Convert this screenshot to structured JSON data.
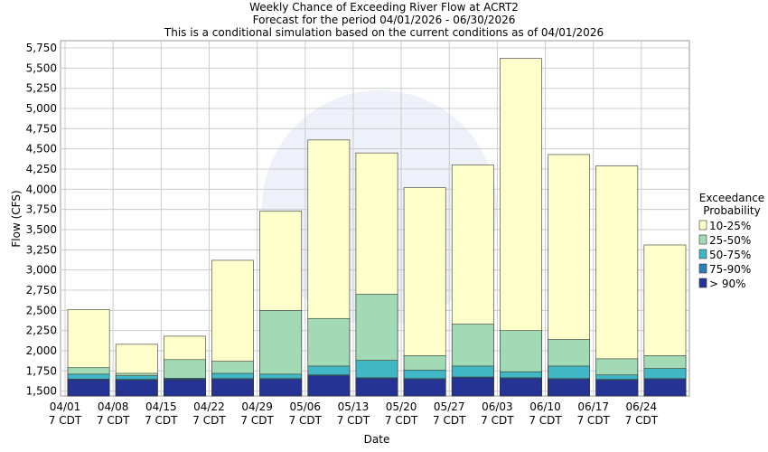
{
  "chart_data": {
    "type": "bar",
    "title": "Weekly Chance of Exceeding River Flow at ACRT2",
    "subtitle": "Forecast for the period 04/01/2026 - 06/30/2026",
    "subtitle2": "This is a conditional simulation based on the current conditions as of 04/01/2026",
    "x_label": "Date",
    "y_label": "Flow (CFS)",
    "legend_title": "Exceedance Probability",
    "categories": [
      "04/01\n7 CDT",
      "04/08\n7 CDT",
      "04/15\n7 CDT",
      "04/22\n7 CDT",
      "04/29\n7 CDT",
      "05/06\n7 CDT",
      "05/13\n7 CDT",
      "05/20\n7 CDT",
      "05/27\n7 CDT",
      "06/03\n7 CDT",
      "06/10\n7 CDT",
      "06/17\n7 CDT",
      "06/24\n7 CDT"
    ],
    "series": [
      {
        "name": "10-25%",
        "color": "#ffffcc",
        "values": [
          2510,
          2080,
          2180,
          3120,
          3730,
          4610,
          4450,
          4020,
          4300,
          5620,
          4430,
          4290,
          3310
        ]
      },
      {
        "name": "25-50%",
        "color": "#a1dab4",
        "values": [
          1790,
          1720,
          1890,
          1870,
          2500,
          2400,
          2700,
          1940,
          2330,
          2250,
          2140,
          1900,
          1940
        ]
      },
      {
        "name": "50-75%",
        "color": "#41b6c4",
        "values": [
          1710,
          1690,
          1660,
          1720,
          1710,
          1810,
          1880,
          1760,
          1810,
          1740,
          1810,
          1700,
          1780
        ]
      },
      {
        "name": "75-90%",
        "color": "#2c7fb8",
        "values": [
          1650,
          1645,
          1650,
          1655,
          1655,
          1700,
          1665,
          1655,
          1675,
          1665,
          1655,
          1645,
          1655
        ]
      },
      {
        "name": "> 90%",
        "color": "#253494",
        "values": [
          1640,
          1635,
          1640,
          1645,
          1645,
          1690,
          1655,
          1645,
          1665,
          1655,
          1645,
          1635,
          1645
        ]
      }
    ],
    "ylim": [
      1440,
      5840
    ],
    "yticks": [
      {
        "value": 1500,
        "label": "1,500"
      },
      {
        "value": 1750,
        "label": "1,750"
      },
      {
        "value": 2000,
        "label": "2,000"
      },
      {
        "value": 2250,
        "label": "2,250"
      },
      {
        "value": 2500,
        "label": "2,500"
      },
      {
        "value": 2750,
        "label": "2,750"
      },
      {
        "value": 3000,
        "label": "3,000"
      },
      {
        "value": 3250,
        "label": "3,250"
      },
      {
        "value": 3500,
        "label": "3,500"
      },
      {
        "value": 3750,
        "label": "3,750"
      },
      {
        "value": 4000,
        "label": "4,000"
      },
      {
        "value": 4250,
        "label": "4,250"
      },
      {
        "value": 4500,
        "label": "4,500"
      },
      {
        "value": 4750,
        "label": "4,750"
      },
      {
        "value": 5000,
        "label": "5,000"
      },
      {
        "value": 5250,
        "label": "5,250"
      },
      {
        "value": 5500,
        "label": "5,500"
      },
      {
        "value": 5750,
        "label": "5,750"
      }
    ],
    "grid": true
  }
}
